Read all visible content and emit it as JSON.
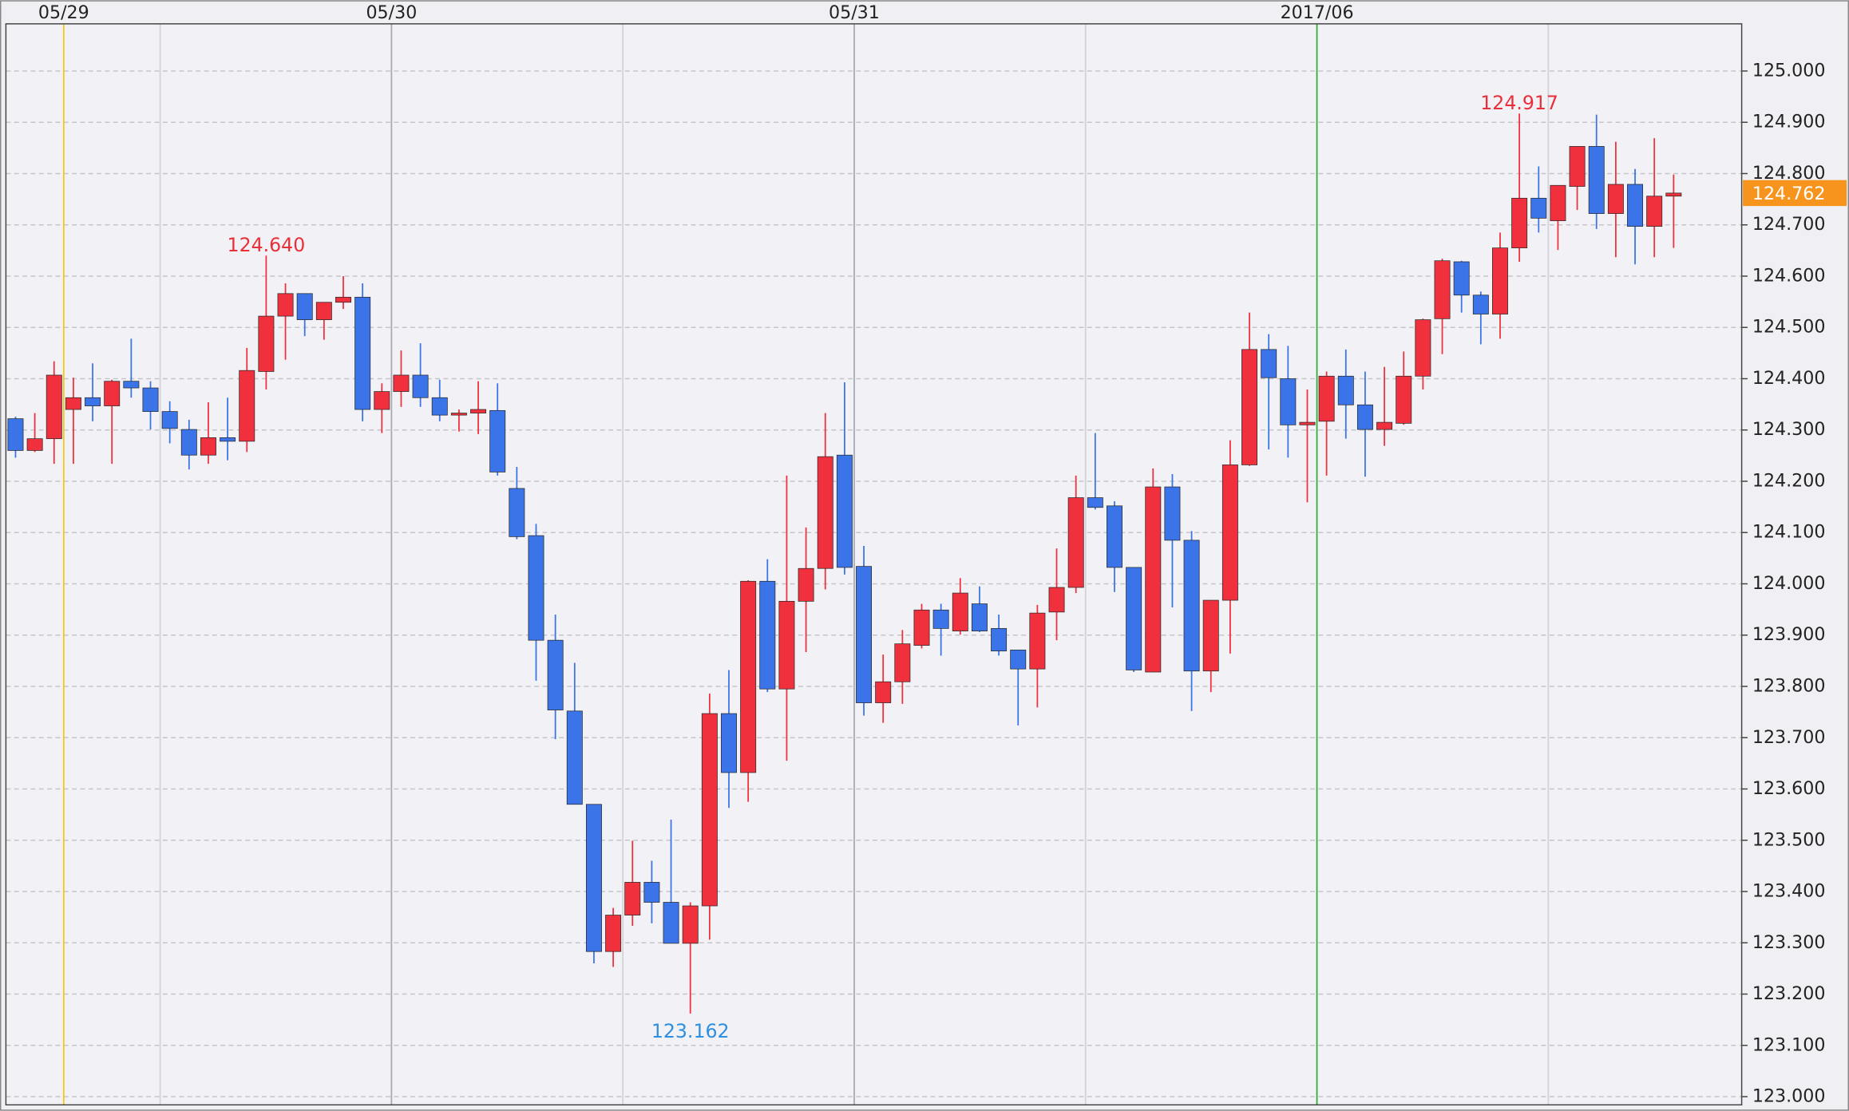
{
  "chart_data": {
    "type": "candlestick",
    "categories": [
      null,
      null,
      null,
      "05/29",
      null,
      null,
      null,
      null,
      null,
      null,
      null,
      null,
      null,
      null,
      null,
      null,
      null,
      null,
      null,
      null,
      "05/30",
      null,
      null,
      null,
      null,
      null,
      null,
      null,
      null,
      null,
      null,
      null,
      null,
      null,
      null,
      null,
      null,
      null,
      null,
      null,
      null,
      null,
      null,
      null,
      "05/31",
      null,
      null,
      null,
      null,
      null,
      null,
      null,
      null,
      null,
      null,
      null,
      null,
      null,
      null,
      null,
      null,
      null,
      null,
      null,
      null,
      null,
      null,
      null,
      "2017/06",
      null,
      null,
      null,
      null,
      null,
      null,
      null,
      null,
      null,
      null,
      null,
      null,
      null,
      null,
      null,
      null,
      null,
      null
    ],
    "divider_colors": [
      null,
      null,
      null,
      "#f5c518",
      null,
      null,
      null,
      null,
      "#d2d2d8",
      null,
      null,
      null,
      null,
      null,
      null,
      null,
      null,
      null,
      null,
      null,
      "#a8a8b0",
      null,
      null,
      null,
      null,
      null,
      null,
      null,
      null,
      null,
      null,
      null,
      "#d2d2d8",
      null,
      null,
      null,
      null,
      null,
      null,
      null,
      null,
      null,
      null,
      null,
      "#a8a8b0",
      null,
      null,
      null,
      null,
      null,
      null,
      null,
      null,
      null,
      null,
      null,
      "#d2d2d8",
      null,
      null,
      null,
      null,
      null,
      null,
      null,
      null,
      null,
      null,
      null,
      "#33aa33",
      null,
      null,
      null,
      null,
      null,
      null,
      null,
      null,
      null,
      null,
      null,
      "#d2d2d8",
      null,
      null,
      null,
      null,
      null,
      null
    ],
    "open": [
      124.322,
      124.26,
      124.283,
      124.34,
      124.363,
      124.347,
      124.395,
      124.382,
      124.336,
      124.301,
      124.251,
      124.285,
      124.278,
      124.414,
      124.522,
      124.566,
      124.515,
      124.549,
      124.559,
      124.34,
      124.375,
      124.407,
      124.363,
      124.329,
      124.333,
      124.338,
      124.186,
      124.094,
      123.89,
      123.752,
      123.57,
      123.283,
      123.354,
      123.418,
      123.379,
      123.299,
      123.372,
      123.747,
      123.632,
      124.005,
      123.795,
      123.966,
      124.03,
      124.251,
      124.034,
      123.768,
      123.809,
      123.88,
      123.949,
      123.908,
      123.961,
      123.913,
      123.871,
      123.834,
      123.945,
      123.993,
      124.168,
      124.152,
      124.032,
      123.828,
      124.189,
      124.085,
      123.83,
      123.968,
      124.232,
      124.457,
      124.4,
      124.31,
      124.317,
      124.405,
      124.349,
      124.301,
      124.313,
      124.405,
      124.517,
      124.628,
      124.563,
      124.526,
      124.655,
      124.752,
      124.708,
      124.775,
      124.853,
      124.722,
      124.779,
      124.697,
      124.756
    ],
    "high": [
      124.326,
      124.333,
      124.434,
      124.402,
      124.43,
      124.398,
      124.478,
      124.395,
      124.356,
      124.32,
      124.354,
      124.363,
      124.46,
      124.64,
      124.586,
      124.566,
      124.549,
      124.6,
      124.586,
      124.391,
      124.455,
      124.469,
      124.398,
      124.34,
      124.395,
      124.391,
      124.228,
      124.117,
      123.94,
      123.846,
      123.57,
      123.368,
      123.499,
      123.46,
      123.54,
      123.379,
      123.786,
      123.832,
      124.007,
      124.048,
      124.211,
      124.11,
      124.333,
      124.393,
      124.074,
      123.862,
      123.91,
      123.961,
      123.961,
      124.011,
      123.995,
      123.94,
      123.871,
      123.959,
      124.069,
      124.211,
      124.294,
      124.161,
      124.032,
      124.225,
      124.214,
      124.103,
      123.968,
      124.28,
      124.529,
      124.487,
      124.464,
      124.379,
      124.414,
      124.457,
      124.414,
      124.423,
      124.453,
      124.517,
      124.634,
      124.63,
      124.57,
      124.685,
      124.917,
      124.814,
      124.777,
      124.853,
      124.915,
      124.862,
      124.809,
      124.869,
      124.798
    ],
    "low": [
      124.246,
      124.257,
      124.234,
      124.234,
      124.317,
      124.234,
      124.363,
      124.301,
      124.274,
      124.223,
      124.234,
      124.241,
      124.257,
      124.379,
      124.437,
      124.483,
      124.476,
      124.536,
      124.317,
      124.294,
      124.345,
      124.345,
      124.317,
      124.297,
      124.292,
      124.211,
      124.087,
      123.811,
      123.697,
      123.57,
      123.26,
      123.253,
      123.333,
      123.338,
      123.299,
      123.162,
      123.306,
      123.563,
      123.575,
      123.789,
      123.655,
      123.867,
      123.989,
      124.018,
      123.743,
      123.729,
      123.766,
      123.874,
      123.86,
      123.901,
      123.906,
      123.86,
      123.724,
      123.759,
      123.89,
      123.982,
      124.145,
      123.984,
      123.828,
      123.828,
      123.954,
      123.752,
      123.789,
      123.864,
      124.23,
      124.262,
      124.246,
      124.159,
      124.211,
      124.283,
      124.209,
      124.269,
      124.31,
      124.379,
      124.448,
      124.529,
      124.467,
      124.478,
      124.628,
      124.685,
      124.651,
      124.729,
      124.692,
      124.637,
      124.623,
      124.637,
      124.655
    ],
    "close": [
      124.26,
      124.283,
      124.407,
      124.363,
      124.347,
      124.395,
      124.382,
      124.336,
      124.303,
      124.251,
      124.285,
      124.278,
      124.416,
      124.522,
      124.566,
      124.515,
      124.549,
      124.559,
      124.34,
      124.375,
      124.407,
      124.363,
      124.329,
      124.333,
      124.34,
      124.218,
      124.092,
      123.89,
      123.754,
      123.57,
      123.283,
      123.354,
      123.418,
      123.379,
      123.299,
      123.372,
      123.747,
      123.632,
      124.005,
      123.795,
      123.966,
      124.03,
      124.248,
      124.032,
      123.768,
      123.809,
      123.883,
      123.949,
      123.913,
      123.982,
      123.908,
      123.869,
      123.834,
      123.943,
      123.993,
      124.168,
      124.149,
      124.032,
      123.832,
      124.189,
      124.085,
      123.83,
      123.968,
      124.232,
      124.457,
      124.402,
      124.31,
      124.315,
      124.405,
      124.349,
      124.301,
      124.315,
      124.405,
      124.515,
      124.63,
      124.563,
      124.526,
      124.655,
      124.752,
      124.713,
      124.777,
      124.853,
      124.722,
      124.779,
      124.697,
      124.756,
      124.762
    ],
    "high_labels": [
      null,
      null,
      null,
      null,
      null,
      null,
      null,
      null,
      null,
      null,
      null,
      null,
      null,
      "124.640",
      null,
      null,
      null,
      null,
      null,
      null,
      null,
      null,
      null,
      null,
      null,
      null,
      null,
      null,
      null,
      null,
      null,
      null,
      null,
      null,
      null,
      null,
      null,
      null,
      null,
      null,
      null,
      null,
      null,
      null,
      null,
      null,
      null,
      null,
      null,
      null,
      null,
      null,
      null,
      null,
      null,
      null,
      null,
      null,
      null,
      null,
      null,
      null,
      null,
      null,
      null,
      null,
      null,
      null,
      null,
      null,
      null,
      null,
      null,
      null,
      null,
      null,
      null,
      null,
      "124.917",
      null,
      null,
      null,
      null,
      null,
      null,
      null,
      null
    ],
    "low_labels": [
      null,
      null,
      null,
      null,
      null,
      null,
      null,
      null,
      null,
      null,
      null,
      null,
      null,
      null,
      null,
      null,
      null,
      null,
      null,
      null,
      null,
      null,
      null,
      null,
      null,
      null,
      null,
      null,
      null,
      null,
      null,
      null,
      null,
      null,
      null,
      "123.162",
      null,
      null,
      null,
      null,
      null,
      null,
      null,
      null,
      null,
      null,
      null,
      null,
      null,
      null,
      null,
      null,
      null,
      null,
      null,
      null,
      null,
      null,
      null,
      null,
      null,
      null,
      null,
      null,
      null,
      null,
      null,
      null,
      null,
      null,
      null,
      null,
      null,
      null,
      null,
      null,
      null,
      null,
      null,
      null,
      null,
      null,
      null,
      null,
      null,
      null,
      null
    ],
    "last_label": "124.762",
    "up_color": "#f0303c",
    "down_color": "#3a74e8",
    "high_label_color": "#e8303a",
    "low_label_color": "#2e8fe0",
    "last_color": "#f7941d",
    "ylim": [
      122.984,
      125.092
    ],
    "yticks": [
      {
        "value": 123.0,
        "label": "123.000"
      },
      {
        "value": 123.1,
        "label": "123.100"
      },
      {
        "value": 123.2,
        "label": "123.200"
      },
      {
        "value": 123.3,
        "label": "123.300"
      },
      {
        "value": 123.4,
        "label": "123.400"
      },
      {
        "value": 123.5,
        "label": "123.500"
      },
      {
        "value": 123.6,
        "label": "123.600"
      },
      {
        "value": 123.7,
        "label": "123.700"
      },
      {
        "value": 123.8,
        "label": "123.800"
      },
      {
        "value": 123.9,
        "label": "123.900"
      },
      {
        "value": 124.0,
        "label": "124.000"
      },
      {
        "value": 124.1,
        "label": "124.100"
      },
      {
        "value": 124.2,
        "label": "124.200"
      },
      {
        "value": 124.3,
        "label": "124.300"
      },
      {
        "value": 124.4,
        "label": "124.400"
      },
      {
        "value": 124.5,
        "label": "124.500"
      },
      {
        "value": 124.6,
        "label": "124.600"
      },
      {
        "value": 124.7,
        "label": "124.700"
      },
      {
        "value": 124.8,
        "label": "124.800"
      },
      {
        "value": 124.9,
        "label": "124.900"
      },
      {
        "value": 125.0,
        "label": "125.000"
      }
    ],
    "grid": true
  }
}
